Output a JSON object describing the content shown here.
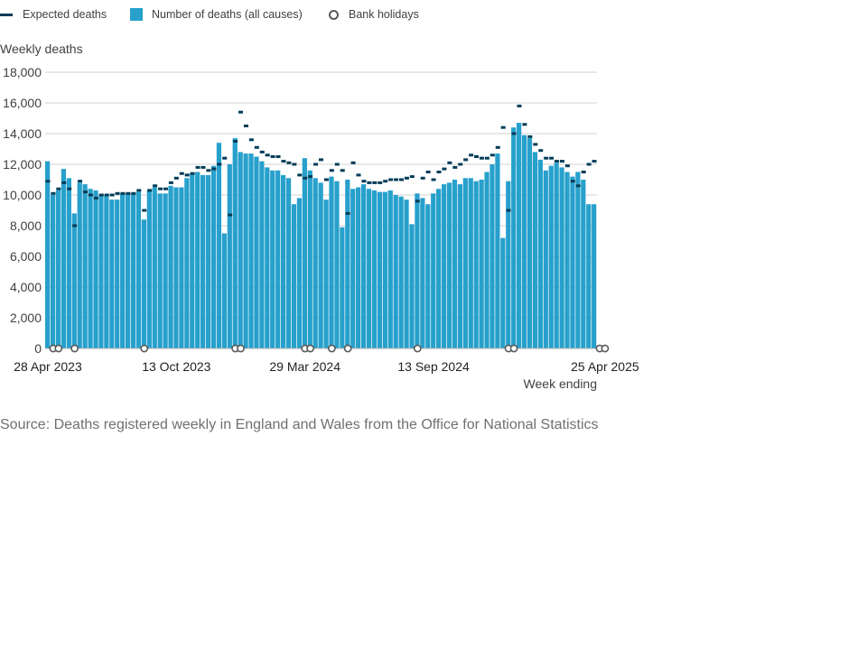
{
  "legend": {
    "expected": "Expected deaths",
    "deaths": "Number of deaths (all causes)",
    "holidays": "Bank holidays"
  },
  "source": "Source: Deaths registered weekly in England and Wales from the Office for National Statistics",
  "colors": {
    "bar": "#27a0cc",
    "expected": "#003c57",
    "holiday_stroke": "#58595b",
    "grid": "#d0d0d0",
    "text": "#414042"
  },
  "chart_data": {
    "type": "bar",
    "ylabel": "Weekly deaths",
    "xlabel": "Week ending",
    "ylim": [
      0,
      18000
    ],
    "yticks": [
      0,
      2000,
      4000,
      6000,
      8000,
      10000,
      12000,
      14000,
      16000,
      18000
    ],
    "ytick_labels": [
      "0",
      "2,000",
      "4,000",
      "6,000",
      "8,000",
      "10,000",
      "12,000",
      "14,000",
      "16,000",
      "18,000"
    ],
    "xtick_labels": [
      {
        "label": "28 Apr 2023",
        "week_index": 0
      },
      {
        "label": "13 Oct 2023",
        "week_index": 24
      },
      {
        "label": "29 Mar 2024",
        "week_index": 48
      },
      {
        "label": "13 Sep 2024",
        "week_index": 72
      },
      {
        "label": "25 Apr 2025",
        "week_index": 104
      }
    ],
    "series": [
      {
        "name": "Number of deaths (all causes)",
        "values": [
          12200,
          10000,
          10300,
          11700,
          11100,
          8800,
          10800,
          10700,
          10400,
          10300,
          10000,
          10000,
          9700,
          9700,
          10100,
          10100,
          10100,
          10200,
          8400,
          10300,
          10500,
          10100,
          10100,
          10600,
          10500,
          10500,
          11100,
          11400,
          11500,
          11300,
          11300,
          11900,
          13400,
          7500,
          12000,
          13700,
          12800,
          12700,
          12700,
          12500,
          12200,
          11800,
          11600,
          11600,
          11300,
          11100,
          9400,
          9800,
          12400,
          11600,
          11100,
          10800,
          9700,
          11200,
          10900,
          7900,
          11000,
          10400,
          10500,
          10700,
          10400,
          10300,
          10200,
          10200,
          10300,
          10000,
          9900,
          9700,
          8100,
          10100,
          9800,
          9400,
          10100,
          10400,
          10700,
          10800,
          11000,
          10700,
          11100,
          11100,
          10900,
          11000,
          11500,
          12000,
          12700,
          7200,
          10900,
          14400,
          14700,
          13900,
          13700,
          12800,
          12300,
          11600,
          11900,
          12100,
          11800,
          11500,
          11200,
          11500,
          11000,
          9400,
          9400
        ],
        "color": "#27a0cc"
      },
      {
        "name": "Expected deaths",
        "values": [
          10900,
          10100,
          10400,
          10800,
          10400,
          8000,
          10900,
          10200,
          10000,
          9800,
          10000,
          10000,
          10000,
          10100,
          10100,
          10100,
          10100,
          10300,
          9000,
          10300,
          10600,
          10400,
          10400,
          10800,
          11100,
          11400,
          11300,
          11400,
          11800,
          11800,
          11600,
          11700,
          12000,
          12400,
          8700,
          13500,
          15400,
          14500,
          13600,
          13100,
          12800,
          12600,
          12500,
          12500,
          12200,
          12100,
          12000,
          11300,
          11100,
          11200,
          12000,
          12300,
          11000,
          11600,
          12000,
          11600,
          8800,
          12100,
          11300,
          10900,
          10800,
          10800,
          10800,
          10900,
          11000,
          11000,
          11000,
          11100,
          11200,
          9600,
          11100,
          11500,
          11000,
          11500,
          11700,
          12100,
          11800,
          12000,
          12300,
          12600,
          12500,
          12400,
          12400,
          12600,
          13100,
          14400,
          9000,
          14000,
          15800,
          14600,
          13800,
          13300,
          12900,
          12400,
          12400,
          12200,
          12200,
          11900,
          10900,
          10600,
          11500,
          12000,
          12200
        ],
        "color": "#003c57"
      }
    ],
    "bank_holiday_weeks": [
      1,
      2,
      5,
      18,
      35,
      36,
      48,
      49,
      53,
      56,
      69,
      86,
      87,
      103,
      104
    ],
    "grid": true,
    "legend_position": "top-left"
  }
}
